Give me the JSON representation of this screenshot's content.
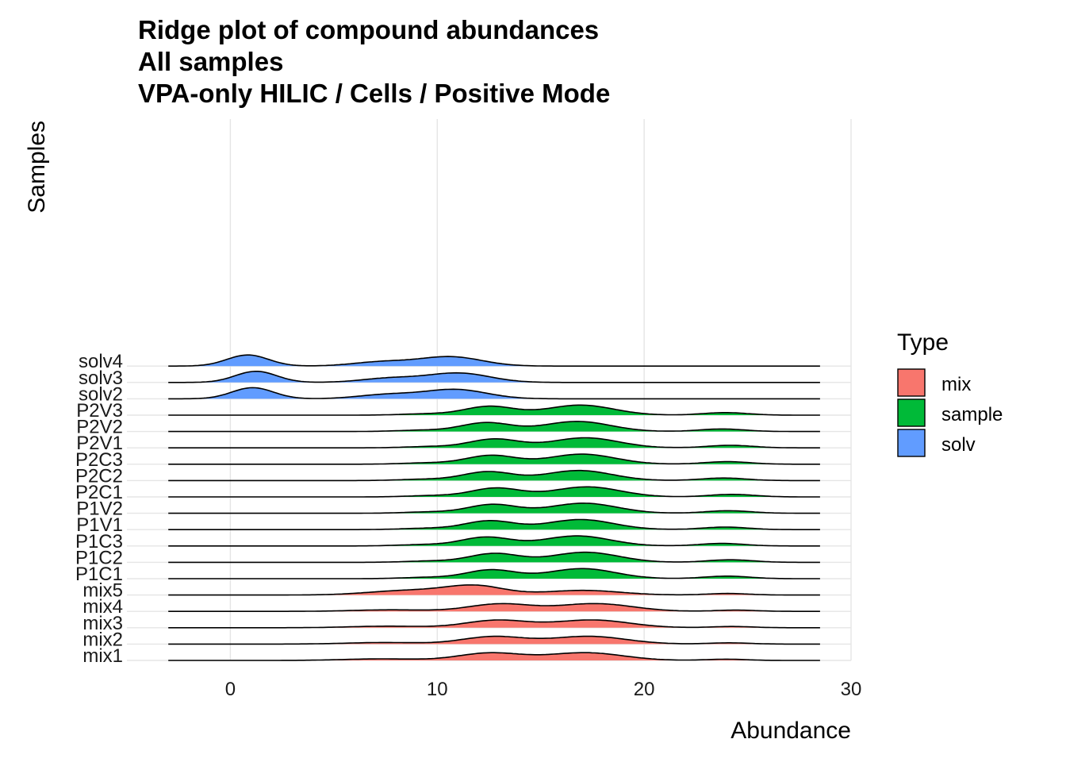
{
  "chart_data": {
    "type": "area",
    "subtype": "ridgeline",
    "title_lines": [
      "Ridge plot of compound abundances",
      "All samples",
      "VPA-only HILIC / Cells / Positive Mode"
    ],
    "xlabel": "Abundance",
    "ylabel": "Samples",
    "xlim": [
      -5,
      30
    ],
    "x_ticks": [
      0,
      10,
      20,
      30
    ],
    "grid": true,
    "legend": {
      "title": "Type",
      "position": "right",
      "items": [
        {
          "label": "mix",
          "color": "#F8766D"
        },
        {
          "label": "sample",
          "color": "#00BA38"
        },
        {
          "label": "solv",
          "color": "#619CFF"
        }
      ]
    },
    "rows": [
      {
        "label": "mix1",
        "type": "mix"
      },
      {
        "label": "mix2",
        "type": "mix"
      },
      {
        "label": "mix3",
        "type": "mix"
      },
      {
        "label": "mix4",
        "type": "mix"
      },
      {
        "label": "mix5",
        "type": "mix"
      },
      {
        "label": "P1C1",
        "type": "sample"
      },
      {
        "label": "P1C2",
        "type": "sample"
      },
      {
        "label": "P1C3",
        "type": "sample"
      },
      {
        "label": "P1V1",
        "type": "sample"
      },
      {
        "label": "P1V2",
        "type": "sample"
      },
      {
        "label": "P2C1",
        "type": "sample"
      },
      {
        "label": "P2C2",
        "type": "sample"
      },
      {
        "label": "P2C3",
        "type": "sample"
      },
      {
        "label": "P2V1",
        "type": "sample"
      },
      {
        "label": "P2V2",
        "type": "sample"
      },
      {
        "label": "P2V3",
        "type": "sample"
      },
      {
        "label": "solv2",
        "type": "solv"
      },
      {
        "label": "solv3",
        "type": "solv"
      },
      {
        "label": "solv4",
        "type": "solv"
      }
    ],
    "density_range": [
      -3,
      28.5
    ],
    "density_profiles": {
      "mix": [
        {
          "mean": 7.5,
          "sd": 1.8,
          "weight": 0.09
        },
        {
          "mean": 12.8,
          "sd": 1.5,
          "weight": 0.36
        },
        {
          "mean": 17.4,
          "sd": 1.8,
          "weight": 0.45
        },
        {
          "mean": 24.2,
          "sd": 1.0,
          "weight": 0.04
        }
      ],
      "sample": [
        {
          "mean": 9.5,
          "sd": 1.2,
          "weight": 0.05
        },
        {
          "mean": 12.6,
          "sd": 1.2,
          "weight": 0.34
        },
        {
          "mean": 17.0,
          "sd": 1.6,
          "weight": 0.52
        },
        {
          "mean": 24.0,
          "sd": 1.1,
          "weight": 0.09
        }
      ],
      "solv": [
        {
          "mean": 1.0,
          "sd": 1.0,
          "weight": 0.36
        },
        {
          "mean": 7.5,
          "sd": 1.4,
          "weight": 0.19
        },
        {
          "mean": 10.8,
          "sd": 1.5,
          "weight": 0.45
        }
      ]
    },
    "row_variations": {
      "mix5": [
        {
          "mean": 8.8,
          "sd": 1.9,
          "weight": 0.28
        },
        {
          "mean": 12.0,
          "sd": 1.4,
          "weight": 0.4
        },
        {
          "mean": 17.2,
          "sd": 1.8,
          "weight": 0.27
        },
        {
          "mean": 24.2,
          "sd": 1.0,
          "weight": 0.05
        }
      ]
    }
  }
}
